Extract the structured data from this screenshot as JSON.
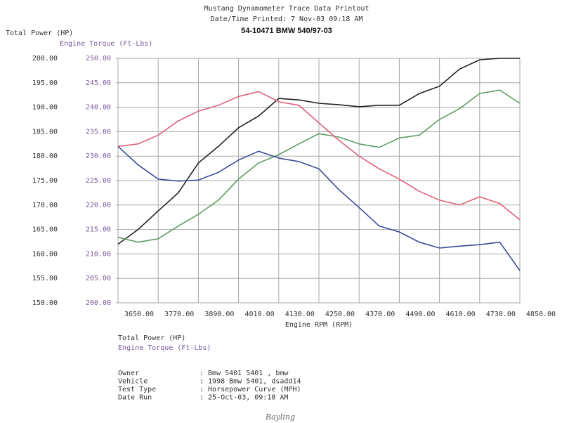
{
  "chart_data": {
    "type": "line",
    "title": "Mustang Dynamometer Trace Data Printout",
    "subtitle": "Date/Time Printed: 7 Nov-03 09:18 AM",
    "run_id": "54-10471 BMW 540/97-03",
    "xlabel": "Engine RPM (RPM)",
    "ylabel": "Total Power (HP)",
    "y2label": "Engine Torque (Ft-Lbs)",
    "grid": true,
    "x": [
      3650,
      3710,
      3770,
      3830,
      3890,
      3950,
      4010,
      4070,
      4130,
      4190,
      4250,
      4310,
      4370,
      4430,
      4490,
      4550,
      4610,
      4670,
      4730,
      4790,
      4850
    ],
    "xlim": [
      3650,
      4850
    ],
    "xticks": [
      {
        "value": 3650,
        "label": "3650.00"
      },
      {
        "value": 3770,
        "label": "3770.00"
      },
      {
        "value": 3890,
        "label": "3890.00"
      },
      {
        "value": 4010,
        "label": "4010.00"
      },
      {
        "value": 4130,
        "label": "4130.00"
      },
      {
        "value": 4250,
        "label": "4250.00"
      },
      {
        "value": 4370,
        "label": "4370.00"
      },
      {
        "value": 4490,
        "label": "4490.00"
      },
      {
        "value": 4610,
        "label": "4610.00"
      },
      {
        "value": 4730,
        "label": "4730.00"
      },
      {
        "value": 4850,
        "label": "4850.00"
      }
    ],
    "ylim": [
      150,
      200
    ],
    "yticks": [
      {
        "value": 150,
        "label": "150.00"
      },
      {
        "value": 155,
        "label": "155.00"
      },
      {
        "value": 160,
        "label": "160.00"
      },
      {
        "value": 165,
        "label": "165.00"
      },
      {
        "value": 170,
        "label": "170.00"
      },
      {
        "value": 175,
        "label": "175.00"
      },
      {
        "value": 180,
        "label": "180.00"
      },
      {
        "value": 185,
        "label": "185.00"
      },
      {
        "value": 190,
        "label": "190.00"
      },
      {
        "value": 195,
        "label": "195.00"
      },
      {
        "value": 200,
        "label": "200.00"
      }
    ],
    "y2lim": [
      200,
      250
    ],
    "y2ticks": [
      {
        "value": 200,
        "label": "200.00"
      },
      {
        "value": 205,
        "label": "205.00"
      },
      {
        "value": 210,
        "label": "210.00"
      },
      {
        "value": 215,
        "label": "215.00"
      },
      {
        "value": 220,
        "label": "220.00"
      },
      {
        "value": 225,
        "label": "225.00"
      },
      {
        "value": 230,
        "label": "230.00"
      },
      {
        "value": 235,
        "label": "235.00"
      },
      {
        "value": 240,
        "label": "240.00"
      },
      {
        "value": 245,
        "label": "245.00"
      },
      {
        "value": 250,
        "label": "250.00"
      }
    ],
    "series": [
      {
        "name": "Total Power (HP)",
        "color": "#222222",
        "values": [
          162,
          165,
          168.8,
          172.5,
          178.6,
          182,
          185.8,
          188.2,
          191.8,
          191.5,
          190.8,
          190.5,
          190.1,
          190.4,
          190.4,
          192.8,
          194.3,
          197.8,
          199.7,
          200,
          200
        ]
      },
      {
        "color": "#5c9c62",
        "values": [
          163.4,
          162.4,
          163.1,
          165.7,
          168.1,
          171,
          175.3,
          178.6,
          180.3,
          182.5,
          184.6,
          183.9,
          182.5,
          181.8,
          183.7,
          184.3,
          187.5,
          189.7,
          192.8,
          193.5,
          190.8
        ]
      },
      {
        "name": "Engine Torque (Ft-Lbs)",
        "color": "#e0607a",
        "axis": "y2",
        "values": [
          232,
          232.5,
          234.3,
          237.2,
          239.2,
          240.4,
          242.2,
          243.2,
          241.1,
          240.4,
          236.8,
          233.2,
          230,
          227.4,
          225.3,
          222.8,
          221,
          220,
          221.7,
          220.3,
          217
        ]
      },
      {
        "color": "#3a4a9a",
        "axis": "y2",
        "values": [
          232,
          228.2,
          225.3,
          224.9,
          225.1,
          226.7,
          229.2,
          231,
          229.6,
          228.9,
          227.4,
          223.1,
          219.5,
          215.7,
          214.5,
          212.4,
          211.2,
          211.6,
          211.9,
          212.4,
          206.6
        ]
      }
    ]
  },
  "report": {
    "rows": [
      {
        "label": "Owner",
        "value": ": Bmw 5401 5401 , bmw"
      },
      {
        "label": "Vehicle",
        "value": ": 1998 Bmw 5401, dsadd14"
      },
      {
        "label": "Test Type",
        "value": ": Horsepower Curve (MPH)"
      },
      {
        "label": "Date Run",
        "value": ": 25-Oct-03, 09:18 AM"
      }
    ],
    "signature": "Bayling"
  }
}
